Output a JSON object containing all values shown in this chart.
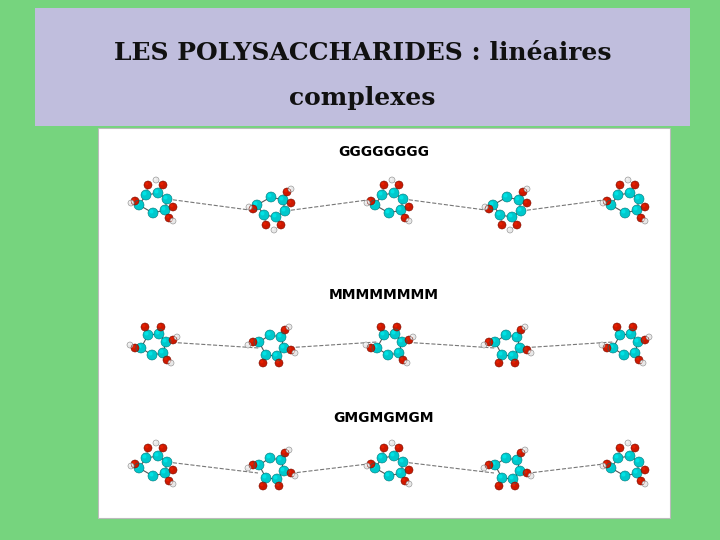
{
  "bg_color": "#76d47e",
  "header_bg": "#c0bedd",
  "content_bg": "#ffffff",
  "title_line1": "LES POLYSACCHARIDES : linéaires",
  "title_line2": "complexes",
  "title_color": "#111111",
  "title_fontsize": 18,
  "label1": "GGGGGGGG",
  "label2": "MMMMMMMM",
  "label3": "GMGMGMGM",
  "label_fontsize": 10,
  "label_color": "#000000",
  "fig_width": 7.2,
  "fig_height": 5.4,
  "dpi": 100,
  "teal": "#00c8cc",
  "red": "#cc1800",
  "white_h": "#e8e8e8",
  "bond": "#999999",
  "dark_bond": "#666666"
}
